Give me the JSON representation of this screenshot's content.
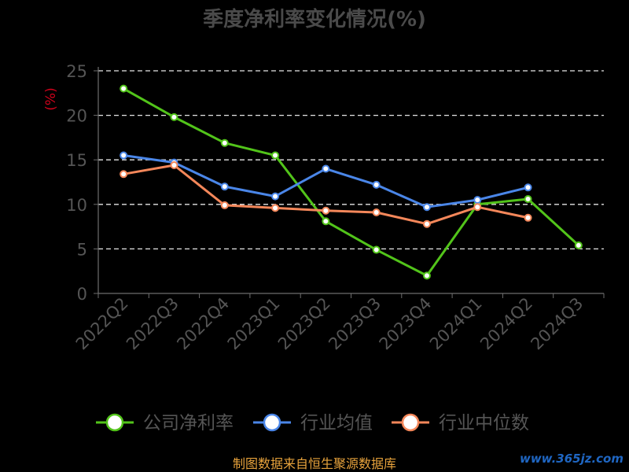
{
  "chart_data": {
    "type": "line",
    "title": "季度净利率变化情况(%)",
    "ylabel": "(%)",
    "ylim": [
      0,
      25
    ],
    "yticks": [
      0,
      5,
      10,
      15,
      20,
      25
    ],
    "grid": true,
    "legend_position": "bottom",
    "categories": [
      "2022Q2",
      "2022Q3",
      "2022Q4",
      "2023Q1",
      "2023Q2",
      "2023Q3",
      "2023Q4",
      "2024Q1",
      "2024Q2",
      "2024Q3"
    ],
    "series": [
      {
        "name": "公司净利率",
        "color": "#52c41a",
        "values": [
          23.0,
          19.8,
          16.9,
          15.5,
          8.1,
          4.9,
          2.0,
          10.0,
          10.6,
          5.4
        ]
      },
      {
        "name": "行业均值",
        "color": "#4a86e8",
        "values": [
          15.5,
          14.7,
          12.0,
          10.9,
          14.0,
          12.2,
          9.7,
          10.5,
          11.9,
          null
        ]
      },
      {
        "name": "行业中位数",
        "color": "#f4875a",
        "values": [
          13.4,
          14.4,
          9.9,
          9.6,
          9.3,
          9.1,
          7.8,
          9.7,
          8.5,
          null
        ]
      }
    ],
    "source": "制图数据来自恒生聚源数据库",
    "watermark": "www.365jz.com"
  }
}
